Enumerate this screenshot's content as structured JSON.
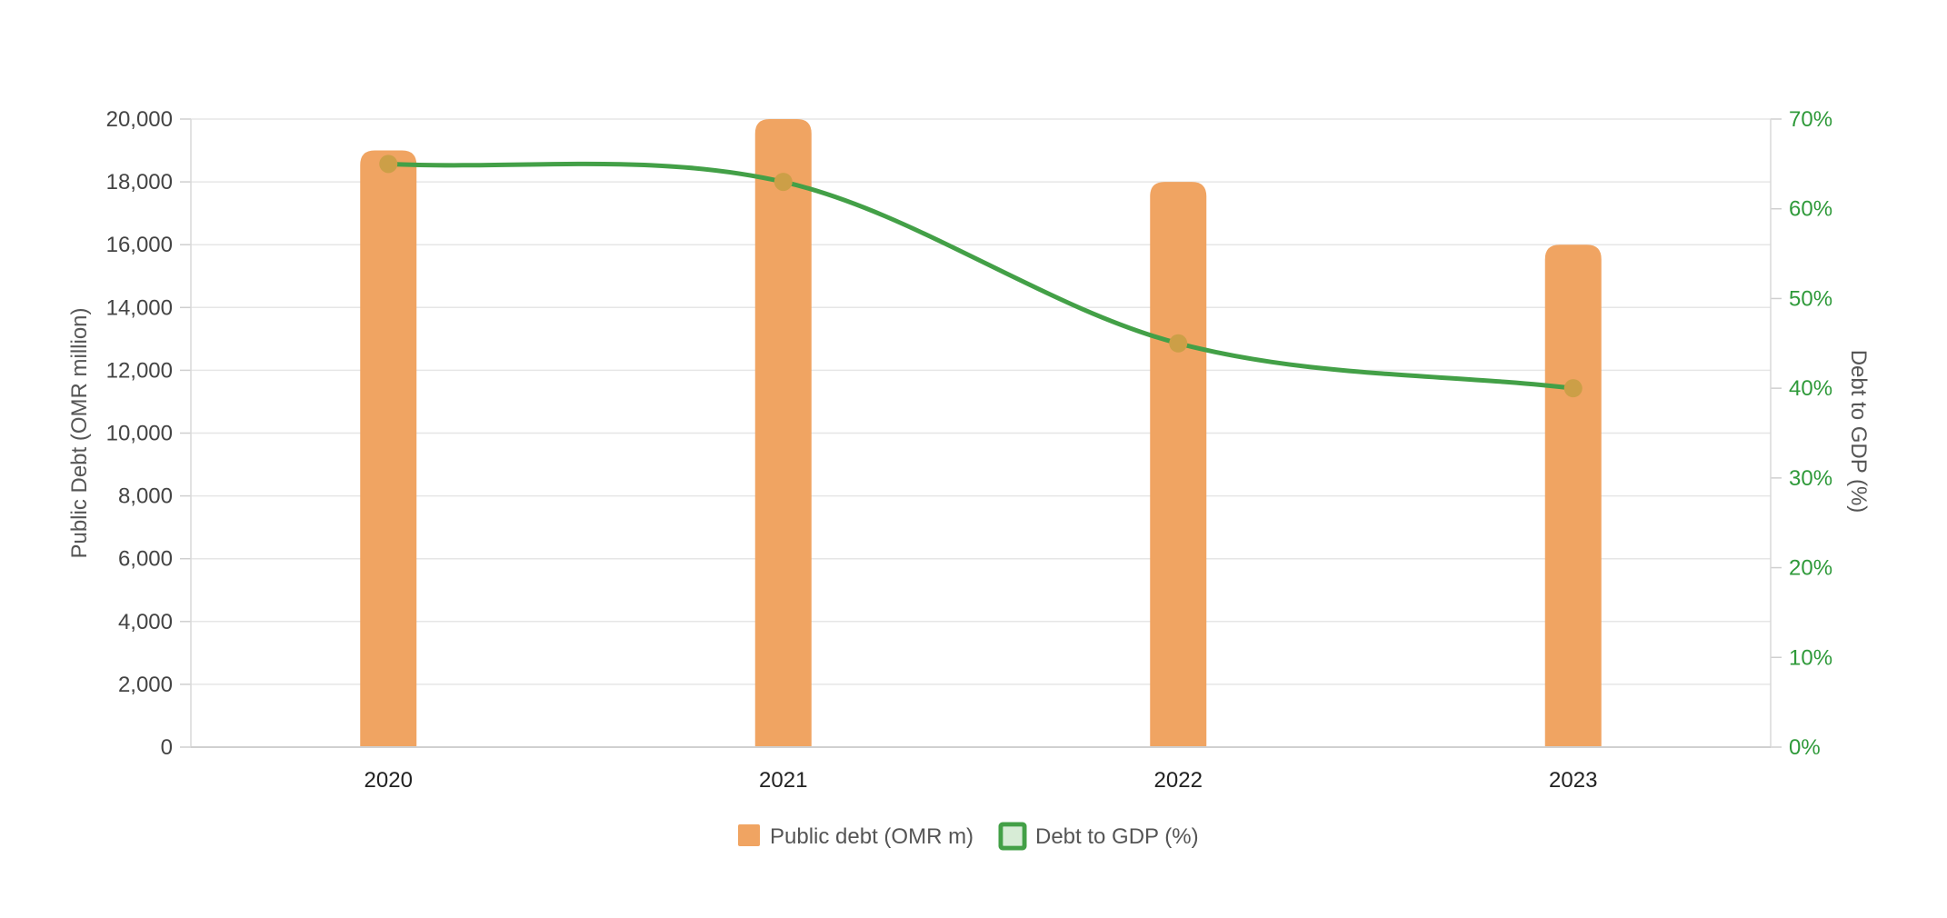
{
  "chart_data": {
    "type": "bar",
    "categories": [
      "2020",
      "2021",
      "2022",
      "2023"
    ],
    "series": [
      {
        "name": "Public debt (OMR m)",
        "type": "bar",
        "axis": "left",
        "values": [
          19000,
          20000,
          18000,
          16000
        ],
        "color": "#f0a462"
      },
      {
        "name": "Debt to GDP (%)",
        "type": "line",
        "axis": "right",
        "values": [
          65,
          63,
          45,
          40
        ],
        "color": "#43a047",
        "marker_color": "#cc9f47"
      }
    ],
    "left_axis": {
      "label": "Public Debt (OMR million)",
      "min": 0,
      "max": 20000,
      "ticks": [
        "20,000",
        "18,000",
        "16,000",
        "14,000",
        "12,000",
        "10,000",
        "8,000",
        "6,000",
        "4,000",
        "2,000",
        "0"
      ]
    },
    "right_axis": {
      "label": "Debt to GDP (%)",
      "min": 0,
      "max": 70,
      "ticks": [
        "70%",
        "60%",
        "50%",
        "40%",
        "30%",
        "20%",
        "10%",
        "0%"
      ],
      "color": "#2f9a3a"
    },
    "grid": true,
    "legend_position": "bottom"
  }
}
